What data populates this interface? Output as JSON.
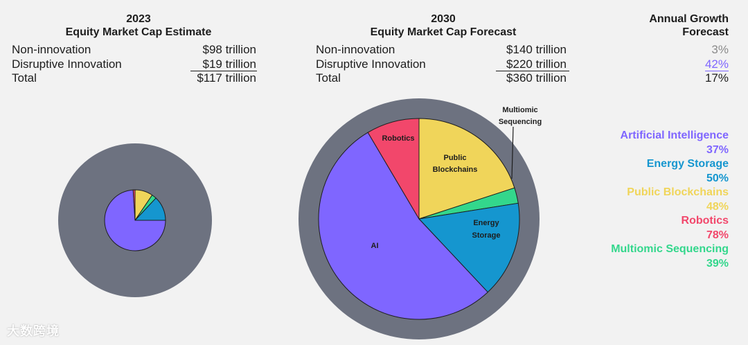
{
  "colors": {
    "ai": "#7f66ff",
    "energy": "#1596cf",
    "blockchain": "#f0d55a",
    "robotics": "#f2476b",
    "multiomic": "#33d78c",
    "ring": "#6d7280"
  },
  "left": {
    "title_year": "2023",
    "title_sub": "Equity Market Cap Estimate",
    "rows": [
      {
        "label": "Non-innovation",
        "value": "$98 trillion"
      },
      {
        "label": "Disruptive Innovation",
        "value": "$19 trillion"
      },
      {
        "label": "Total",
        "value": "$117 trillion"
      }
    ]
  },
  "middle": {
    "title_year": "2030",
    "title_sub": "Equity Market Cap Forecast",
    "rows": [
      {
        "label": "Non-innovation",
        "value": "$140 trillion"
      },
      {
        "label": "Disruptive Innovation",
        "value": "$220 trillion"
      },
      {
        "label": "Total",
        "value": "$360 trillion"
      }
    ]
  },
  "growth": {
    "title_line1": "Annual Growth",
    "title_line2": "Forecast",
    "values": [
      "3%",
      "42%",
      "17%"
    ]
  },
  "legend": [
    {
      "name": "Artificial Intelligence",
      "rate": "37%",
      "color": "#7f66ff"
    },
    {
      "name": "Energy Storage",
      "rate": "50%",
      "color": "#1596cf"
    },
    {
      "name": "Public Blockchains",
      "rate": "48%",
      "color": "#f0d55a"
    },
    {
      "name": "Robotics",
      "rate": "78%",
      "color": "#f2476b"
    },
    {
      "name": "Multiomic Sequencing",
      "rate": "39%",
      "color": "#33d78c"
    }
  ],
  "chart_data": [
    {
      "type": "pie",
      "title": "2023 Equity Market Cap Estimate",
      "total_trillion": 117,
      "non_innovation_trillion": 98,
      "disruptive_trillion": 19,
      "slice_start_deg": 0,
      "slices": [
        {
          "name": "Public Blockchains",
          "pct": 9.5
        },
        {
          "name": "Multiomic Sequencing",
          "pct": 2.5
        },
        {
          "name": "Energy Storage",
          "pct": 13
        },
        {
          "name": "AI",
          "pct": 74
        },
        {
          "name": "Robotics",
          "pct": 1
        }
      ]
    },
    {
      "type": "pie",
      "title": "2030 Equity Market Cap Forecast",
      "total_trillion": 360,
      "non_innovation_trillion": 140,
      "disruptive_trillion": 220,
      "slice_start_deg": 0,
      "slices": [
        {
          "name": "Public Blockchains",
          "pct": 20,
          "label": "Public Blockchains"
        },
        {
          "name": "Multiomic Sequencing",
          "pct": 2.5,
          "label": "Multiomic Sequencing"
        },
        {
          "name": "Energy Storage",
          "pct": 15.5,
          "label": "Energy Storage"
        },
        {
          "name": "AI",
          "pct": 53.5,
          "label": "AI"
        },
        {
          "name": "Robotics",
          "pct": 8.5,
          "label": "Robotics"
        }
      ]
    }
  ],
  "watermark": "大数跨境"
}
